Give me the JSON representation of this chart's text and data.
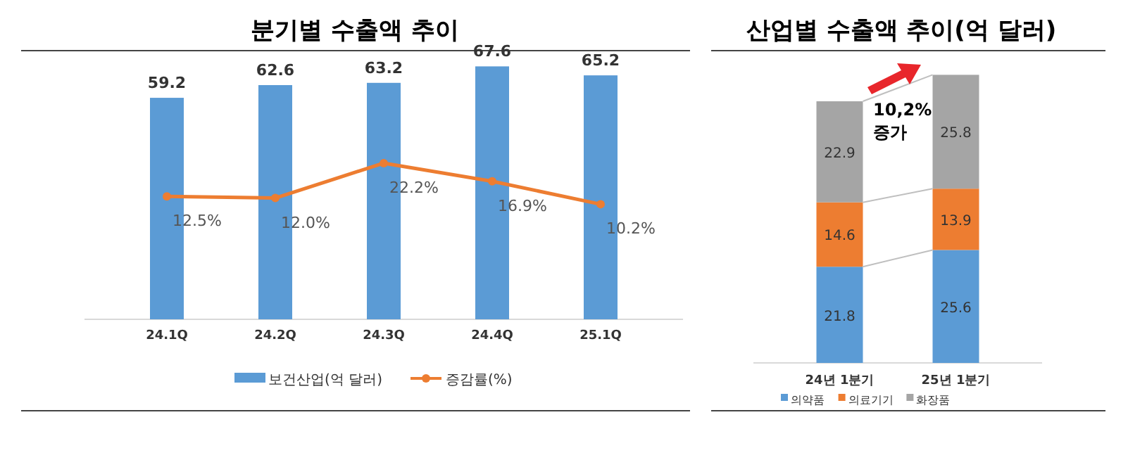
{
  "chart_data": [
    {
      "type": "bar",
      "title": "분기별 수출액 추이",
      "categories": [
        "24.1Q",
        "24.2Q",
        "24.3Q",
        "24.4Q",
        "25.1Q"
      ],
      "series": [
        {
          "name": "보건산업(억 달러)",
          "color": "#5b9bd5",
          "values": [
            59.2,
            62.6,
            63.2,
            67.6,
            65.2
          ]
        },
        {
          "name": "증감률(%)",
          "type": "line",
          "axis": "y2",
          "color": "#ed7d31",
          "values": [
            12.5,
            12.0,
            22.2,
            16.9,
            10.2
          ],
          "value_labels": [
            "12.5%",
            "12.0%",
            "22.2%",
            "16.9%",
            "10.2%"
          ]
        }
      ],
      "data_labels": true,
      "tick_labels": "x",
      "legend": "bottom",
      "marker": "circle"
    },
    {
      "type": "bar",
      "stacked": true,
      "title": "산업별 수출액 추이(억 달러)",
      "categories": [
        "24년 1분기",
        "25년 1분기"
      ],
      "series": [
        {
          "name": "의약품",
          "color": "#5b9bd5",
          "values": [
            21.8,
            25.6
          ]
        },
        {
          "name": "의료기기",
          "color": "#ed7d31",
          "values": [
            14.6,
            13.9
          ]
        },
        {
          "name": "화장품",
          "color": "#a5a5a5",
          "values": [
            22.9,
            25.8
          ]
        }
      ],
      "data_labels": true,
      "tick_labels": "x",
      "legend": "bottom",
      "annotations": [
        "10,2% 증가"
      ]
    }
  ]
}
